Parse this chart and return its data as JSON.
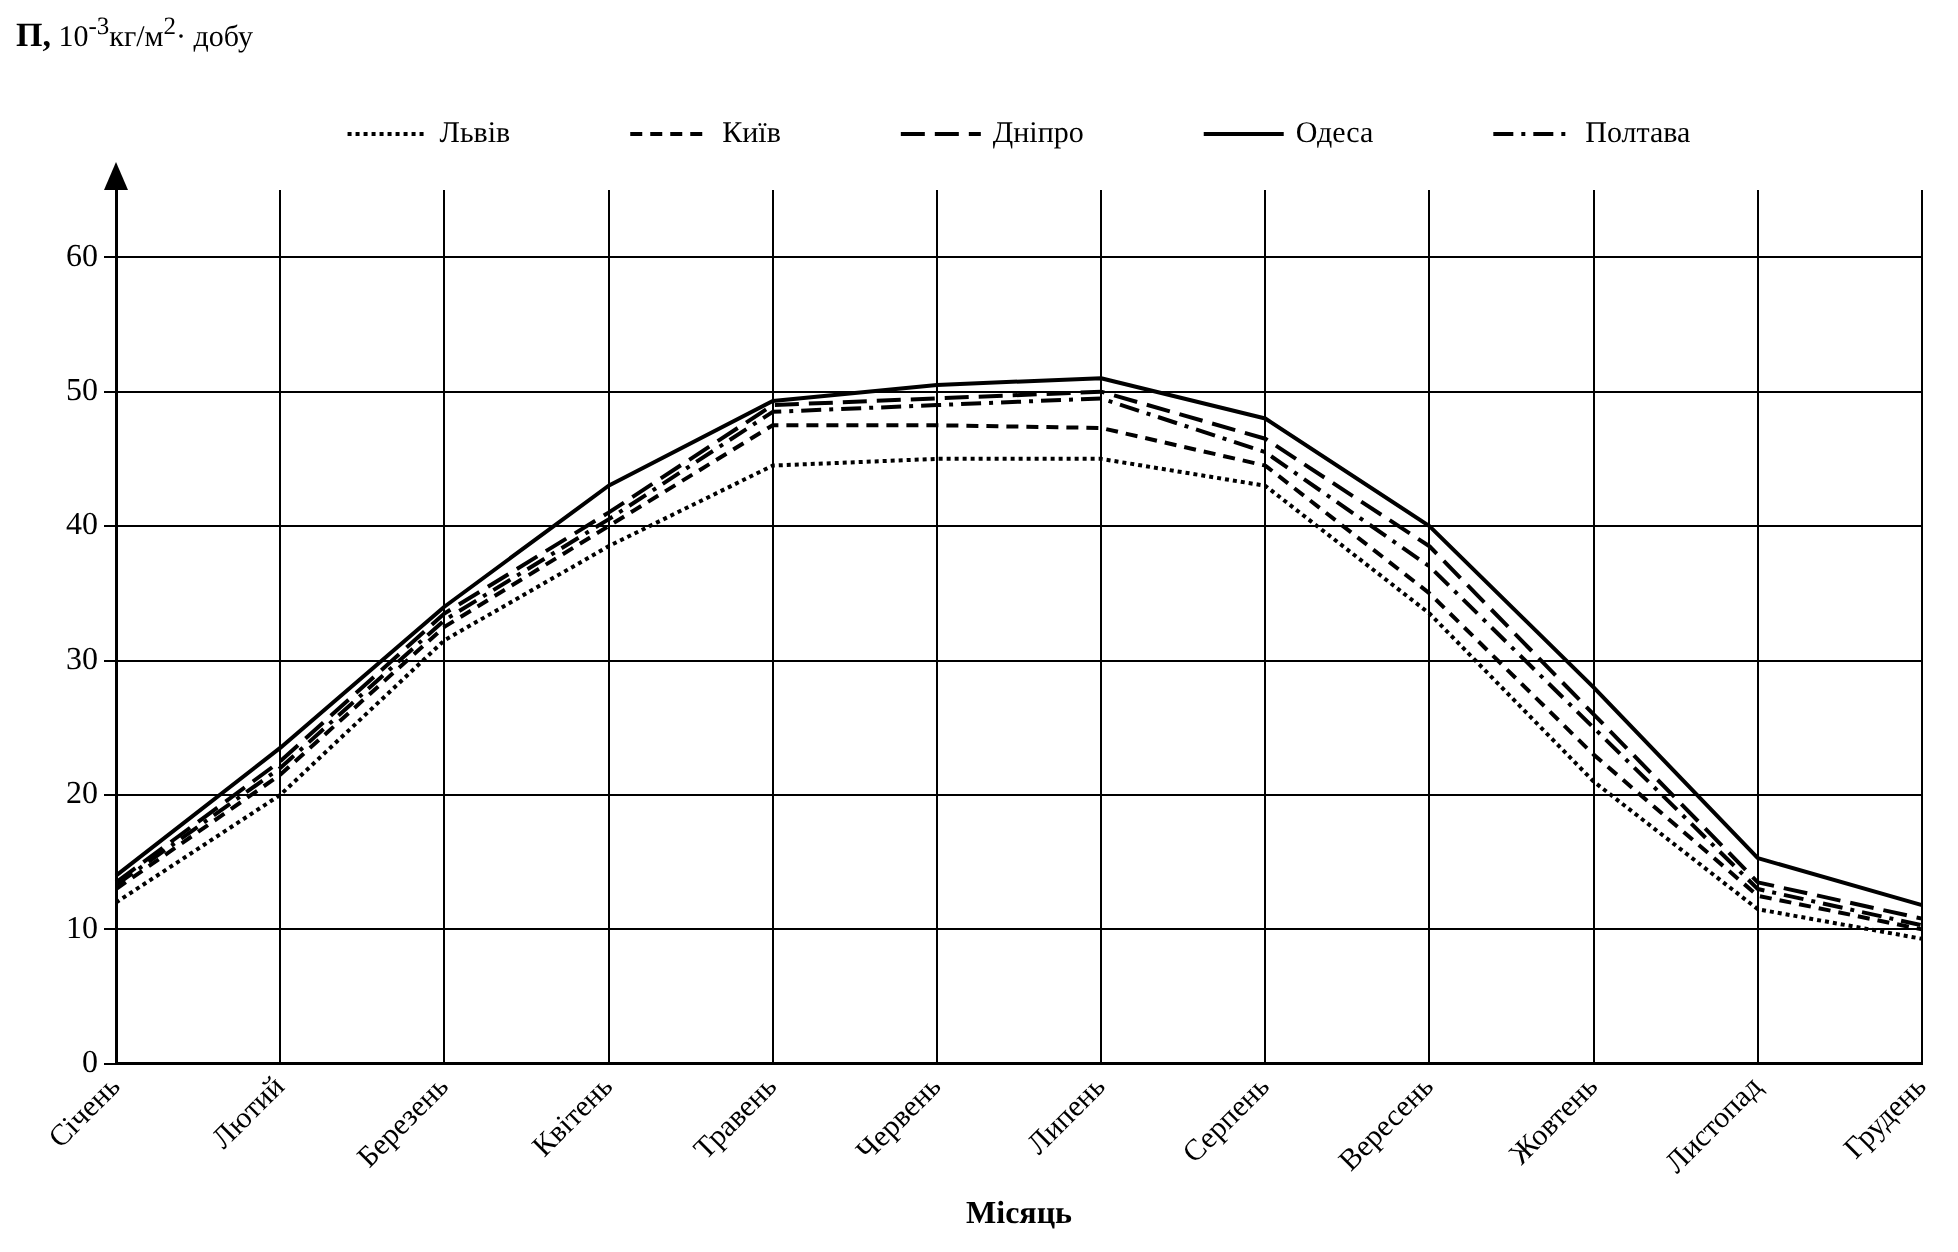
{
  "chart_data": {
    "type": "line",
    "ylabel": "П, 10$^{-3}$кг/м$^{2}$· добу",
    "xlabel": "Місяць",
    "categories": [
      "Січень",
      "Лютий",
      "Березень",
      "Квітень",
      "Травень",
      "Червень",
      "Липень",
      "Серпень",
      "Вересень",
      "Жовтень",
      "Листопад",
      "Грудень"
    ],
    "series": [
      {
        "name": "Львів",
        "color": "#000000",
        "line_style": "dotted",
        "values": [
          12,
          20,
          31.5,
          38.5,
          44.5,
          45,
          45,
          43,
          33.5,
          21,
          11.5,
          9.3
        ]
      },
      {
        "name": "Київ",
        "color": "#000000",
        "line_style": "dashed",
        "values": [
          13,
          21.5,
          32.5,
          40,
          47.5,
          47.5,
          47.3,
          44.5,
          35,
          23,
          12.5,
          10
        ]
      },
      {
        "name": "Дніпро",
        "color": "#000000",
        "line_style": "longdash",
        "values": [
          13.5,
          22.5,
          33.5,
          41,
          49,
          49.5,
          50,
          46.5,
          38.5,
          26,
          13.5,
          10.8
        ]
      },
      {
        "name": "Одеса",
        "color": "#000000",
        "line_style": "solid",
        "values": [
          14,
          23.5,
          34,
          43,
          49.3,
          50.5,
          51,
          48,
          40,
          28,
          15.3,
          11.8
        ]
      },
      {
        "name": "Полтава",
        "color": "#000000",
        "line_style": "dashdot",
        "values": [
          13.3,
          22,
          33,
          40.5,
          48.5,
          49,
          49.5,
          45.5,
          37,
          25,
          13,
          10.3
        ]
      }
    ],
    "ylim": [
      0,
      65
    ],
    "yticks": [
      0,
      10,
      20,
      30,
      40,
      50,
      60
    ],
    "grid": true,
    "legend": "top",
    "marker": "none"
  }
}
